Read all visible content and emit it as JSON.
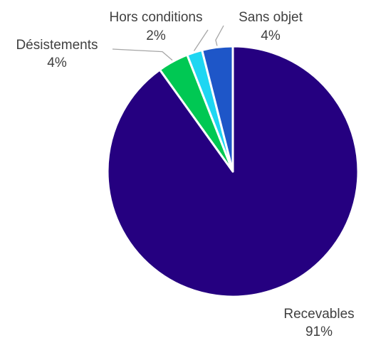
{
  "chart_data": {
    "type": "pie",
    "title": "",
    "legend": "none",
    "start_angle_deg": 0,
    "direction": "clockwise",
    "slices": [
      {
        "name": "Recevables",
        "value": 91,
        "label": "91%",
        "color": "#250080"
      },
      {
        "name": "Désistements",
        "value": 4,
        "label": "4%",
        "color": "#00c853"
      },
      {
        "name": "Hors conditions",
        "value": 2,
        "label": "2%",
        "color": "#1ed6f2"
      },
      {
        "name": "Sans objet",
        "value": 4,
        "label": "4%",
        "color": "#1e56c8"
      }
    ]
  }
}
